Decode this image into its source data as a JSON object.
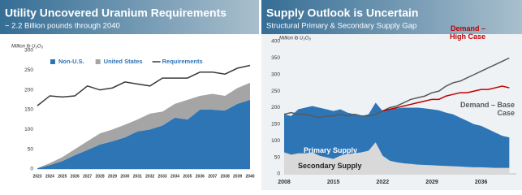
{
  "chart_data": [
    {
      "type": "area",
      "title": "Utility Uncovered Uranium Requirements",
      "subtitle": "~ 2.2 Billion pounds through 2040",
      "y_label": "Million lb U₃O₈",
      "categories": [
        "2023",
        "2024",
        "2025",
        "2026",
        "2027",
        "2028",
        "2029",
        "2030",
        "2031",
        "2032",
        "2033",
        "2034",
        "2035",
        "2036",
        "2037",
        "2038",
        "2039",
        "2040"
      ],
      "series": [
        {
          "name": "Non-U.S.",
          "kind": "area",
          "color": "#2e75b6",
          "values": [
            2,
            10,
            20,
            35,
            48,
            62,
            70,
            80,
            95,
            100,
            110,
            130,
            125,
            150,
            150,
            148,
            165,
            175
          ]
        },
        {
          "name": "United States",
          "kind": "area",
          "color": "#a5a5a5",
          "values": [
            0,
            5,
            10,
            15,
            22,
            28,
            30,
            32,
            30,
            40,
            35,
            35,
            50,
            35,
            40,
            37,
            40,
            43
          ]
        },
        {
          "name": "Requirements",
          "kind": "line",
          "color": "#3a3a3a",
          "values": [
            160,
            185,
            182,
            185,
            210,
            200,
            205,
            220,
            215,
            210,
            230,
            230,
            230,
            245,
            245,
            240,
            255,
            262
          ]
        }
      ],
      "ylim": [
        0,
        300
      ],
      "yticks": [
        0,
        50,
        100,
        150,
        200,
        250,
        300
      ],
      "grid": false,
      "legend": "top"
    },
    {
      "type": "area",
      "title": "Supply Outlook is Uncertain",
      "subtitle": "Structural Primary & Secondary Supply Gap",
      "y_label": "Million lb U₃O₈",
      "x": [
        2008,
        2009,
        2010,
        2011,
        2012,
        2013,
        2014,
        2015,
        2016,
        2017,
        2018,
        2019,
        2020,
        2021,
        2022,
        2023,
        2024,
        2025,
        2026,
        2027,
        2028,
        2029,
        2030,
        2031,
        2032,
        2033,
        2034,
        2035,
        2036,
        2037,
        2038,
        2039,
        2040
      ],
      "series": [
        {
          "name": "Secondary Supply",
          "kind": "area",
          "color": "#d9d9d9",
          "values": [
            65,
            58,
            62,
            62,
            65,
            55,
            50,
            45,
            55,
            60,
            62,
            65,
            70,
            95,
            55,
            40,
            35,
            32,
            30,
            28,
            27,
            26,
            25,
            24,
            23,
            22,
            21,
            20,
            20,
            19,
            18,
            18,
            18
          ]
        },
        {
          "name": "Primary Supply",
          "kind": "area",
          "color": "#2e75b6",
          "values": [
            115,
            117,
            133,
            138,
            140,
            145,
            145,
            145,
            140,
            125,
            118,
            110,
            110,
            120,
            135,
            155,
            163,
            168,
            170,
            172,
            171,
            169,
            167,
            161,
            157,
            148,
            139,
            130,
            125,
            116,
            107,
            97,
            92
          ]
        },
        {
          "name": "Demand – Base Case",
          "kind": "line",
          "color": "#595959",
          "values": [
            180,
            185,
            180,
            180,
            175,
            170,
            175,
            175,
            180,
            175,
            180,
            175,
            175,
            180,
            190,
            200,
            205,
            215,
            225,
            230,
            235,
            245,
            250,
            265,
            275,
            280,
            290,
            300,
            310,
            320,
            330,
            340,
            350
          ]
        },
        {
          "name": "Demand – High Case",
          "kind": "line",
          "color": "#c00000",
          "values": [
            null,
            null,
            null,
            null,
            null,
            null,
            null,
            null,
            null,
            null,
            null,
            null,
            null,
            null,
            190,
            195,
            200,
            205,
            210,
            215,
            220,
            225,
            225,
            235,
            240,
            245,
            245,
            250,
            255,
            255,
            260,
            265,
            260
          ]
        }
      ],
      "xlim": [
        2008,
        2041
      ],
      "xticks": [
        2008,
        2015,
        2022,
        2029,
        2036
      ],
      "ylim": [
        0,
        400
      ],
      "yticks": [
        0,
        50,
        100,
        150,
        200,
        250,
        300,
        350,
        400
      ],
      "grid": false,
      "legend": "inline"
    }
  ]
}
